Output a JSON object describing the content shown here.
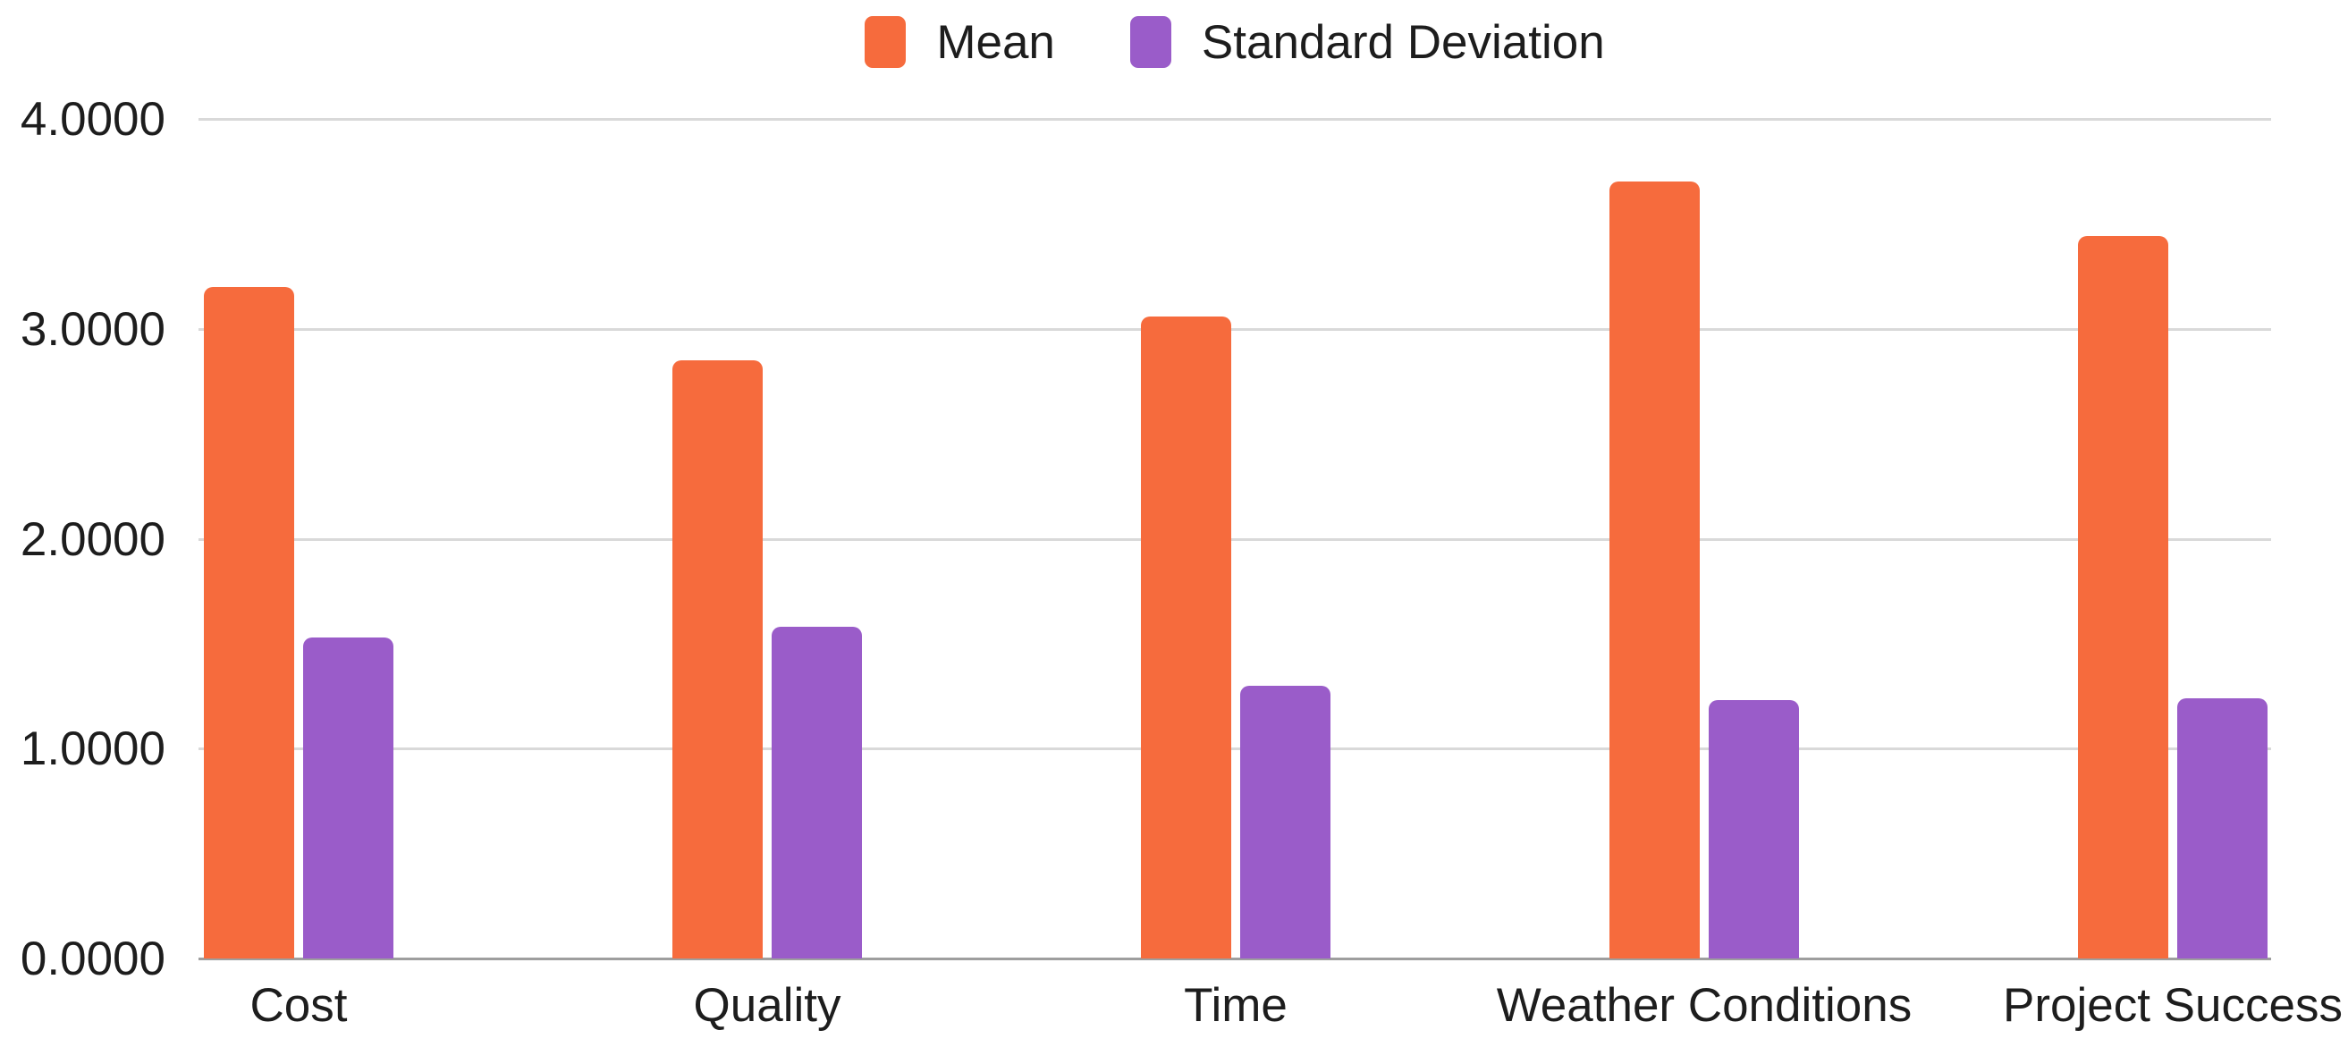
{
  "legend": {
    "items": [
      {
        "label": "Mean",
        "color": "#F66B3D"
      },
      {
        "label": "Standard Deviation",
        "color": "#9A5CC9"
      }
    ]
  },
  "chart_data": {
    "type": "bar",
    "title": "",
    "xlabel": "",
    "ylabel": "",
    "categories": [
      "Cost",
      "Quality",
      "Time",
      "Weather Conditions",
      "Project Success"
    ],
    "series": [
      {
        "name": "Mean",
        "color": "#F66B3D",
        "values": [
          3.2,
          2.85,
          3.06,
          3.7,
          3.44
        ]
      },
      {
        "name": "Standard Deviation",
        "color": "#9A5CC9",
        "values": [
          1.53,
          1.58,
          1.3,
          1.23,
          1.24
        ]
      }
    ],
    "ylim": [
      0,
      4
    ],
    "y_tick_values": [
      0,
      1,
      2,
      3,
      4
    ],
    "y_tick_labels": [
      "0.0000",
      "1.0000",
      "2.0000",
      "3.0000",
      "4.0000"
    ],
    "grid": "horizontal",
    "legend_position": "top-center"
  },
  "colors": {
    "background": "#FFFFFF",
    "gridline": "#D9D9D9",
    "axisline": "#9E9E9E",
    "text": "#1D1D1D"
  }
}
